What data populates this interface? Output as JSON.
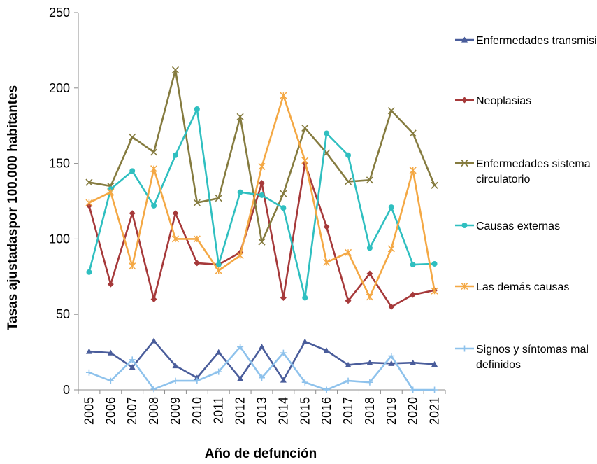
{
  "chart_data": {
    "type": "line",
    "title": "",
    "xlabel": "Año de defunción",
    "ylabel": "Tasas ajustadaspor 100.000 habitantes",
    "ylim": [
      0,
      250
    ],
    "yticks": [
      0,
      50,
      100,
      150,
      200,
      250
    ],
    "grid": false,
    "legend_position": "right",
    "x": [
      "2005",
      "2006",
      "2007",
      "2008",
      "2009",
      "2010",
      "2011",
      "2012",
      "2013",
      "2014",
      "2015",
      "2016",
      "2017",
      "2018",
      "2019",
      "2020",
      "2021"
    ],
    "series": [
      {
        "name": "Enfermedades transmisibles",
        "color": "#4a5d9b",
        "marker": "triangle",
        "values": [
          25.5,
          24.5,
          15,
          32.5,
          16,
          8,
          25,
          7.5,
          28.5,
          6.5,
          32,
          26,
          16.5,
          18,
          17.5,
          18,
          17
        ]
      },
      {
        "name": "Neoplasias",
        "color": "#a6393a",
        "marker": "diamond",
        "values": [
          122,
          70,
          117,
          60,
          117,
          84,
          83,
          91,
          137,
          61,
          150,
          108,
          59,
          77,
          55,
          63,
          66
        ]
      },
      {
        "name": "Enfermedades sistema circulatorio",
        "color": "#857b3f",
        "marker": "x",
        "values": [
          137.5,
          135,
          167.5,
          157.5,
          212,
          124,
          127,
          181,
          98,
          130,
          173.5,
          157,
          138,
          139,
          185,
          170,
          135.5
        ]
      },
      {
        "name": "Causas externas",
        "color": "#2fbfc0",
        "marker": "circle",
        "values": [
          78,
          133,
          145,
          122,
          155.5,
          186,
          83,
          131,
          129,
          120.5,
          61,
          170,
          155.5,
          94,
          121,
          83,
          83.5
        ]
      },
      {
        "name": "Las demás causas",
        "color": "#f4a844",
        "marker": "star",
        "values": [
          124,
          131,
          82,
          146.5,
          100,
          100,
          79,
          89,
          148,
          195,
          152,
          84.5,
          91,
          61.5,
          93.5,
          145.5,
          65.5
        ]
      },
      {
        "name": "Signos y síntomas mal definidos",
        "color": "#8ec2ec",
        "marker": "plus",
        "values": [
          11.5,
          6,
          20,
          0.5,
          6,
          6,
          12,
          28.5,
          8,
          24.5,
          5,
          0,
          6,
          5,
          22.5,
          0,
          0
        ]
      }
    ]
  }
}
